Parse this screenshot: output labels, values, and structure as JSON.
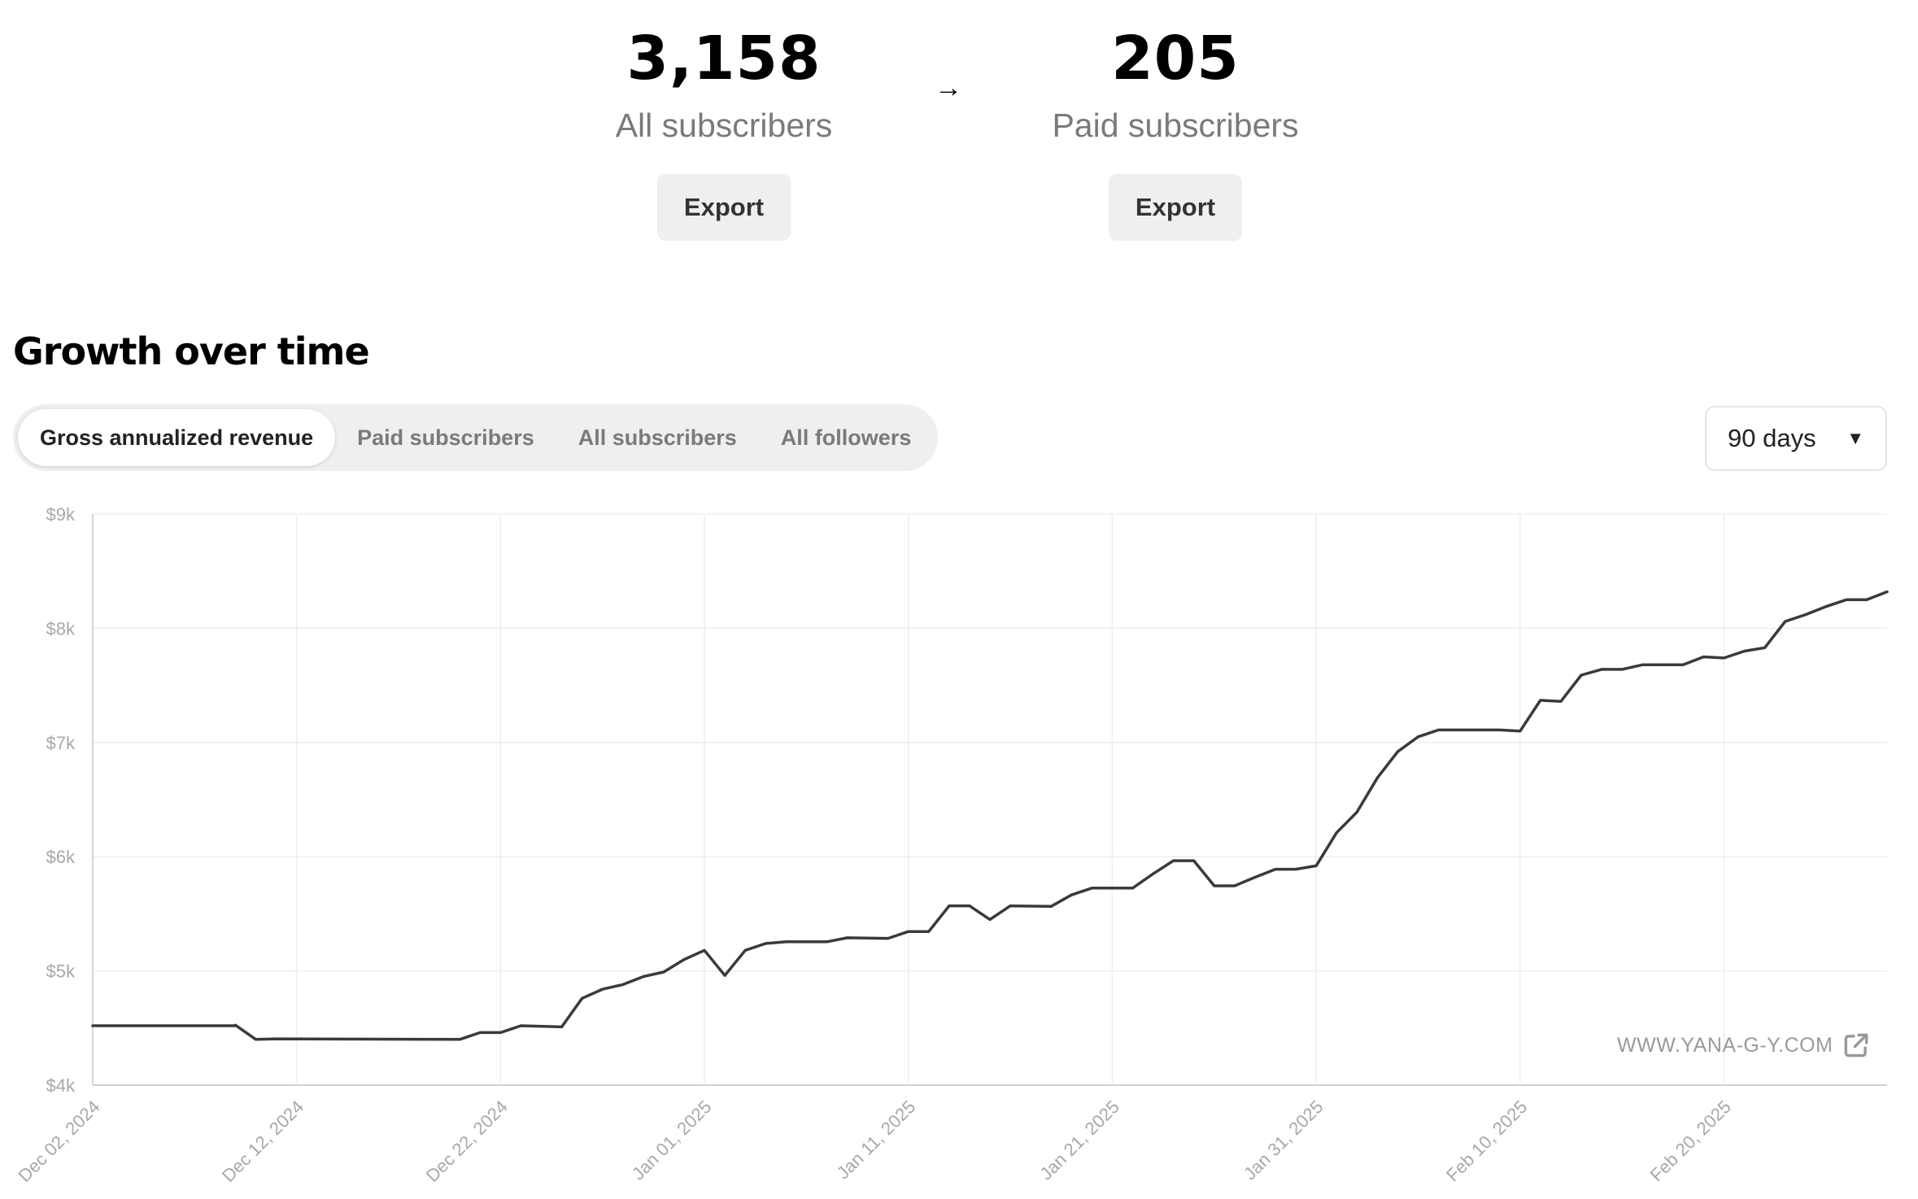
{
  "stats": {
    "all": {
      "value": "3,158",
      "label": "All subscribers",
      "export_label": "Export"
    },
    "arrow": "→",
    "paid": {
      "value": "205",
      "label": "Paid subscribers",
      "export_label": "Export"
    }
  },
  "growth": {
    "title": "Growth over time",
    "tabs": [
      {
        "label": "Gross annualized revenue",
        "active": true
      },
      {
        "label": "Paid subscribers",
        "active": false
      },
      {
        "label": "All subscribers",
        "active": false
      },
      {
        "label": "All followers",
        "active": false
      }
    ],
    "range": {
      "selected": "90 days",
      "icon": "caret-down-icon"
    },
    "watermark": {
      "text": "WWW.YANA-G-Y.COM",
      "icon": "external-link-icon"
    }
  },
  "chart_data": {
    "type": "line",
    "xlabel": "",
    "ylabel": "",
    "ylim": [
      4000,
      9000
    ],
    "yticks": [
      4000,
      5000,
      6000,
      7000,
      8000,
      9000
    ],
    "ytick_labels": [
      "$4k",
      "$5k",
      "$6k",
      "$7k",
      "$8k",
      "$9k"
    ],
    "xlim": [
      "2024-12-02",
      "2025-02-28"
    ],
    "xticks": [
      "2024-12-02",
      "2024-12-12",
      "2024-12-22",
      "2025-01-01",
      "2025-01-11",
      "2025-01-21",
      "2025-01-31",
      "2025-02-10",
      "2025-02-20"
    ],
    "xtick_labels": [
      "Dec 02, 2024",
      "Dec 12, 2024",
      "Dec 22, 2024",
      "Jan 01, 2025",
      "Jan 11, 2025",
      "Jan 21, 2025",
      "Jan 31, 2025",
      "Feb 10, 2025",
      "Feb 20, 2025"
    ],
    "grid": true,
    "line_color": "#3a3a3a",
    "series": [
      {
        "points": [
          [
            "2024-12-02",
            4520
          ],
          [
            "2024-12-09",
            4520
          ],
          [
            "2024-12-09",
            4525
          ],
          [
            "2024-12-10",
            4400
          ],
          [
            "2024-12-11",
            4405
          ],
          [
            "2024-12-20",
            4400
          ],
          [
            "2024-12-21",
            4460
          ],
          [
            "2024-12-22",
            4460
          ],
          [
            "2024-12-23",
            4520
          ],
          [
            "2024-12-25",
            4510
          ],
          [
            "2024-12-26",
            4760
          ],
          [
            "2024-12-27",
            4840
          ],
          [
            "2024-12-28",
            4880
          ],
          [
            "2024-12-29",
            4950
          ],
          [
            "2024-12-30",
            4990
          ],
          [
            "2024-12-31",
            5100
          ],
          [
            "2025-01-01",
            5180
          ],
          [
            "2025-01-02",
            4960
          ],
          [
            "2025-01-03",
            5180
          ],
          [
            "2025-01-04",
            5240
          ],
          [
            "2025-01-05",
            5255
          ],
          [
            "2025-01-07",
            5255
          ],
          [
            "2025-01-08",
            5290
          ],
          [
            "2025-01-10",
            5285
          ],
          [
            "2025-01-11",
            5345
          ],
          [
            "2025-01-12",
            5345
          ],
          [
            "2025-01-13",
            5570
          ],
          [
            "2025-01-14",
            5570
          ],
          [
            "2025-01-15",
            5450
          ],
          [
            "2025-01-16",
            5570
          ],
          [
            "2025-01-18",
            5565
          ],
          [
            "2025-01-19",
            5665
          ],
          [
            "2025-01-20",
            5725
          ],
          [
            "2025-01-22",
            5725
          ],
          [
            "2025-01-23",
            5850
          ],
          [
            "2025-01-24",
            5965
          ],
          [
            "2025-01-25",
            5965
          ],
          [
            "2025-01-26",
            5745
          ],
          [
            "2025-01-27",
            5745
          ],
          [
            "2025-01-28",
            5820
          ],
          [
            "2025-01-29",
            5890
          ],
          [
            "2025-01-30",
            5890
          ],
          [
            "2025-01-31",
            5920
          ],
          [
            "2025-02-01",
            6210
          ],
          [
            "2025-02-02",
            6390
          ],
          [
            "2025-02-03",
            6690
          ],
          [
            "2025-02-04",
            6920
          ],
          [
            "2025-02-05",
            7050
          ],
          [
            "2025-02-06",
            7110
          ],
          [
            "2025-02-09",
            7110
          ],
          [
            "2025-02-10",
            7100
          ],
          [
            "2025-02-11",
            7370
          ],
          [
            "2025-02-12",
            7360
          ],
          [
            "2025-02-13",
            7590
          ],
          [
            "2025-02-14",
            7640
          ],
          [
            "2025-02-15",
            7640
          ],
          [
            "2025-02-16",
            7680
          ],
          [
            "2025-02-18",
            7680
          ],
          [
            "2025-02-19",
            7750
          ],
          [
            "2025-02-20",
            7740
          ],
          [
            "2025-02-21",
            7800
          ],
          [
            "2025-02-22",
            7830
          ],
          [
            "2025-02-23",
            8060
          ],
          [
            "2025-02-24",
            8120
          ],
          [
            "2025-02-25",
            8190
          ],
          [
            "2025-02-26",
            8250
          ],
          [
            "2025-02-27",
            8250
          ],
          [
            "2025-02-28",
            8320
          ]
        ]
      }
    ]
  }
}
